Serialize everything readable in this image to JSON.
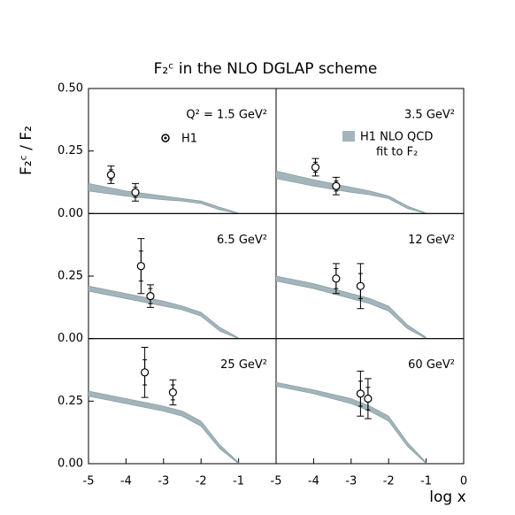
{
  "figure": {
    "title": "F₂ᶜ  in the NLO DGLAP scheme",
    "ylabel": "F₂ᶜ / F₂",
    "xlabel": "log x",
    "legend": {
      "data": "H1",
      "fit": [
        "H1 NLO QCD",
        "fit to F₂"
      ]
    }
  },
  "chart_data": [
    {
      "type": "band-points",
      "label": "Q² = 1.5 GeV²",
      "color": "#a3b5bb",
      "xlim": [
        -5,
        0
      ],
      "ylim": [
        0,
        0.5
      ],
      "yticks": [
        {
          "value": 0,
          "label": "0.00"
        },
        {
          "value": 0.25,
          "label": "0.25"
        },
        {
          "value": 0.5,
          "label": "0.50"
        }
      ],
      "band": {
        "x": [
          -5,
          -4,
          -3,
          -2.5,
          -2,
          -1.5,
          -1
        ],
        "lower": [
          0.09,
          0.07,
          0.055,
          0.05,
          0.04,
          0.015,
          0
        ],
        "upper": [
          0.12,
          0.09,
          0.07,
          0.06,
          0.05,
          0.025,
          0.002
        ]
      },
      "points": {
        "x": [
          -4.4,
          -3.75
        ],
        "y": [
          0.155,
          0.085
        ],
        "stat_err": [
          0.02,
          0.02
        ],
        "total_err": [
          0.035,
          0.035
        ]
      }
    },
    {
      "type": "band-points",
      "label": "3.5 GeV²",
      "color": "#a3b5bb",
      "xlim": [
        -5,
        0
      ],
      "ylim": [
        0,
        0.5
      ],
      "band": {
        "x": [
          -5,
          -4,
          -3,
          -2.5,
          -2,
          -1.5,
          -1
        ],
        "lower": [
          0.14,
          0.11,
          0.085,
          0.075,
          0.06,
          0.02,
          0
        ],
        "upper": [
          0.17,
          0.135,
          0.105,
          0.09,
          0.07,
          0.03,
          0.002
        ]
      },
      "points": {
        "x": [
          -3.95,
          -3.4
        ],
        "y": [
          0.185,
          0.11
        ],
        "stat_err": [
          0.02,
          0.02
        ],
        "total_err": [
          0.035,
          0.035
        ]
      }
    },
    {
      "type": "band-points",
      "label": "6.5 GeV²",
      "color": "#a3b5bb",
      "xlim": [
        -5,
        0
      ],
      "ylim": [
        0,
        0.5
      ],
      "yticks": [
        {
          "value": 0,
          "label": "0.00"
        },
        {
          "value": 0.25,
          "label": "0.25"
        }
      ],
      "band": {
        "x": [
          -5,
          -4,
          -3,
          -2.5,
          -2,
          -1.5,
          -1
        ],
        "lower": [
          0.19,
          0.16,
          0.13,
          0.115,
          0.09,
          0.03,
          0
        ],
        "upper": [
          0.21,
          0.18,
          0.15,
          0.13,
          0.105,
          0.045,
          0.003
        ]
      },
      "points": {
        "x": [
          -3.6,
          -3.35
        ],
        "y": [
          0.29,
          0.17
        ],
        "stat_err": [
          0.06,
          0.03
        ],
        "total_err": [
          0.11,
          0.045
        ]
      }
    },
    {
      "type": "band-points",
      "label": "12 GeV²",
      "color": "#a3b5bb",
      "xlim": [
        -5,
        0
      ],
      "ylim": [
        0,
        0.5
      ],
      "band": {
        "x": [
          -5,
          -4,
          -3,
          -2.5,
          -2,
          -1.5,
          -1
        ],
        "lower": [
          0.23,
          0.2,
          0.16,
          0.14,
          0.11,
          0.04,
          0
        ],
        "upper": [
          0.25,
          0.22,
          0.18,
          0.16,
          0.13,
          0.055,
          0.005
        ]
      },
      "points": {
        "x": [
          -3.4,
          -2.75
        ],
        "y": [
          0.24,
          0.21
        ],
        "stat_err": [
          0.04,
          0.05
        ],
        "total_err": [
          0.06,
          0.09
        ]
      }
    },
    {
      "type": "band-points",
      "label": "25 GeV²",
      "color": "#a3b5bb",
      "xlim": [
        -5,
        0
      ],
      "ylim": [
        0,
        0.5
      ],
      "yticks": [
        {
          "value": 0,
          "label": "0.00"
        },
        {
          "value": 0.25,
          "label": "0.25"
        }
      ],
      "xticks": [
        -5,
        -4,
        -3,
        -2,
        -1
      ],
      "band": {
        "x": [
          -5,
          -4,
          -3,
          -2.5,
          -2,
          -1.5,
          -1
        ],
        "lower": [
          0.27,
          0.24,
          0.21,
          0.19,
          0.15,
          0.06,
          0
        ],
        "upper": [
          0.29,
          0.26,
          0.23,
          0.21,
          0.17,
          0.075,
          0.005
        ]
      },
      "points": {
        "x": [
          -3.5,
          -2.75
        ],
        "y": [
          0.365,
          0.285
        ],
        "stat_err": [
          0.05,
          0.03
        ],
        "total_err": [
          0.1,
          0.05
        ]
      }
    },
    {
      "type": "band-points",
      "label": "60 GeV²",
      "color": "#a3b5bb",
      "xlim": [
        -5,
        0
      ],
      "ylim": [
        0,
        0.5
      ],
      "xticks": [
        -5,
        -4,
        -3,
        -2,
        -1,
        0
      ],
      "band": {
        "x": [
          -5,
          -4,
          -3,
          -2.5,
          -2,
          -1.5,
          -1
        ],
        "lower": [
          0.31,
          0.28,
          0.24,
          0.21,
          0.17,
          0.07,
          0
        ],
        "upper": [
          0.325,
          0.295,
          0.26,
          0.23,
          0.19,
          0.085,
          0.005
        ]
      },
      "points": {
        "x": [
          -2.75,
          -2.55
        ],
        "y": [
          0.28,
          0.26
        ],
        "stat_err": [
          0.05,
          0.045
        ],
        "total_err": [
          0.09,
          0.08
        ]
      }
    }
  ]
}
